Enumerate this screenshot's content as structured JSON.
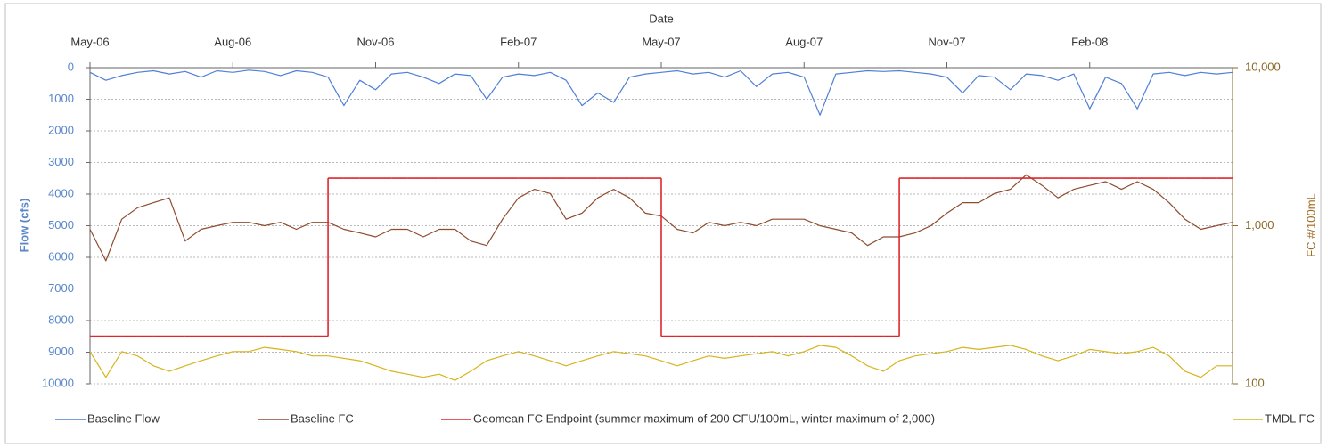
{
  "chart_data": {
    "type": "line",
    "xlabel": "Date",
    "ylabel": "Flow (cfs)",
    "y2label": "FC #/100mL",
    "categories": [
      "May-06",
      null,
      null,
      null,
      null,
      null,
      null,
      null,
      null,
      "Aug-06",
      null,
      null,
      null,
      null,
      null,
      null,
      null,
      null,
      "Nov-06",
      null,
      null,
      null,
      null,
      null,
      null,
      null,
      null,
      "Feb-07",
      null,
      null,
      null,
      null,
      null,
      null,
      null,
      null,
      "May-07",
      null,
      null,
      null,
      null,
      null,
      null,
      null,
      null,
      "Aug-07",
      null,
      null,
      null,
      null,
      null,
      null,
      null,
      null,
      "Nov-07",
      null,
      null,
      null,
      null,
      null,
      null,
      null,
      null,
      "Feb-08",
      null,
      null,
      null,
      null,
      null,
      null,
      null,
      null,
      null
    ],
    "ylim": [
      0,
      10000
    ],
    "yinverted": true,
    "yticks": [
      0,
      1000,
      2000,
      3000,
      4000,
      5000,
      6000,
      7000,
      8000,
      9000,
      10000
    ],
    "y2lim": [
      100,
      10000
    ],
    "y2log": true,
    "y2ticks": [
      100,
      {
        "value": 1000,
        "label": "1,000"
      },
      {
        "value": 10000,
        "label": "10,000"
      }
    ],
    "grid": true,
    "legend": "bottom",
    "series": [
      {
        "name": "Baseline Flow",
        "color": "#4f7fd8",
        "axis": "y",
        "values": [
          150,
          400,
          250,
          150,
          100,
          200,
          120,
          300,
          100,
          150,
          80,
          120,
          250,
          100,
          150,
          300,
          1200,
          400,
          700,
          200,
          150,
          300,
          500,
          200,
          250,
          1000,
          300,
          200,
          250,
          150,
          400,
          1200,
          800,
          1100,
          300,
          200,
          150,
          100,
          200,
          150,
          300,
          100,
          600,
          200,
          150,
          300,
          1500,
          200,
          150,
          100,
          120,
          100,
          150,
          200,
          300,
          800,
          250,
          300,
          700,
          200,
          250,
          400,
          200,
          1300,
          300,
          500,
          1300,
          200,
          150,
          250,
          150,
          200,
          150
        ]
      },
      {
        "name": "Baseline FC",
        "color": "#8e4b2e",
        "axis": "y2",
        "values": [
          950,
          600,
          1100,
          1300,
          1400,
          1500,
          800,
          950,
          1000,
          1050,
          1050,
          1000,
          1050,
          950,
          1050,
          1050,
          950,
          900,
          850,
          950,
          950,
          850,
          950,
          950,
          800,
          750,
          1100,
          1500,
          1700,
          1600,
          1100,
          1200,
          1500,
          1700,
          1500,
          1200,
          1150,
          950,
          900,
          1050,
          1000,
          1050,
          1000,
          1100,
          1100,
          1100,
          1000,
          950,
          900,
          750,
          850,
          850,
          900,
          1000,
          1200,
          1400,
          1400,
          1600,
          1700,
          2100,
          1800,
          1500,
          1700,
          1800,
          1900,
          1700,
          1900,
          1700,
          1400,
          1100,
          950,
          1000,
          1050
        ]
      },
      {
        "name": "Geomean FC Endpoint  (summer maximum of 200 CFU/100mL, winter maximum of 2,000)",
        "color": "#e0262c",
        "axis": "y2",
        "step": true,
        "values": [
          200,
          200,
          200,
          200,
          200,
          200,
          200,
          200,
          200,
          200,
          200,
          200,
          200,
          200,
          200,
          2000,
          2000,
          2000,
          2000,
          2000,
          2000,
          2000,
          2000,
          2000,
          2000,
          2000,
          2000,
          2000,
          2000,
          2000,
          2000,
          2000,
          2000,
          2000,
          2000,
          2000,
          200,
          200,
          200,
          200,
          200,
          200,
          200,
          200,
          200,
          200,
          200,
          200,
          200,
          200,
          200,
          2000,
          2000,
          2000,
          2000,
          2000,
          2000,
          2000,
          2000,
          2000,
          2000,
          2000,
          2000,
          2000,
          2000,
          2000,
          2000,
          2000,
          2000,
          2000,
          2000,
          2000,
          2000
        ]
      },
      {
        "name": "TMDL FC",
        "color": "#d6b41c",
        "axis": "y2",
        "values": [
          160,
          110,
          160,
          150,
          130,
          120,
          130,
          140,
          150,
          160,
          160,
          170,
          165,
          160,
          150,
          150,
          145,
          140,
          130,
          120,
          115,
          110,
          115,
          105,
          120,
          140,
          150,
          160,
          150,
          140,
          130,
          140,
          150,
          160,
          155,
          150,
          140,
          130,
          140,
          150,
          145,
          150,
          155,
          160,
          150,
          160,
          175,
          170,
          150,
          130,
          120,
          140,
          150,
          155,
          160,
          170,
          165,
          170,
          175,
          165,
          150,
          140,
          150,
          165,
          160,
          155,
          160,
          170,
          150,
          120,
          110,
          130,
          130
        ]
      }
    ]
  }
}
